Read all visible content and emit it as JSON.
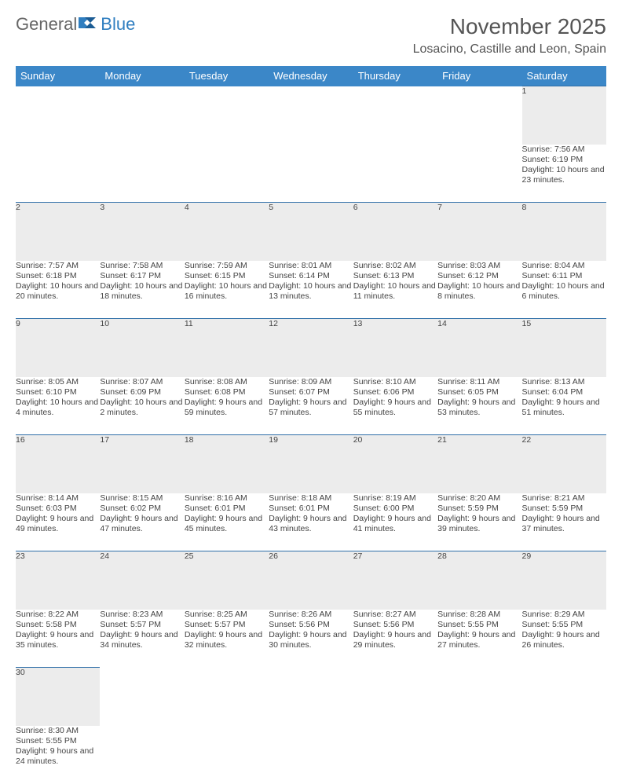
{
  "logo": {
    "part1": "General",
    "part2": "Blue"
  },
  "title": "November 2025",
  "location": "Losacino, Castille and Leon, Spain",
  "colors": {
    "header_bg": "#3b87c8",
    "header_text": "#ffffff",
    "daynum_bg": "#ececec",
    "row_border": "#2f6fa8",
    "text": "#444444",
    "logo_gray": "#666666",
    "logo_blue": "#2f7ec0"
  },
  "day_headers": [
    "Sunday",
    "Monday",
    "Tuesday",
    "Wednesday",
    "Thursday",
    "Friday",
    "Saturday"
  ],
  "weeks": [
    [
      null,
      null,
      null,
      null,
      null,
      null,
      {
        "n": "1",
        "sunrise": "Sunrise: 7:56 AM",
        "sunset": "Sunset: 6:19 PM",
        "daylight": "Daylight: 10 hours and 23 minutes."
      }
    ],
    [
      {
        "n": "2",
        "sunrise": "Sunrise: 7:57 AM",
        "sunset": "Sunset: 6:18 PM",
        "daylight": "Daylight: 10 hours and 20 minutes."
      },
      {
        "n": "3",
        "sunrise": "Sunrise: 7:58 AM",
        "sunset": "Sunset: 6:17 PM",
        "daylight": "Daylight: 10 hours and 18 minutes."
      },
      {
        "n": "4",
        "sunrise": "Sunrise: 7:59 AM",
        "sunset": "Sunset: 6:15 PM",
        "daylight": "Daylight: 10 hours and 16 minutes."
      },
      {
        "n": "5",
        "sunrise": "Sunrise: 8:01 AM",
        "sunset": "Sunset: 6:14 PM",
        "daylight": "Daylight: 10 hours and 13 minutes."
      },
      {
        "n": "6",
        "sunrise": "Sunrise: 8:02 AM",
        "sunset": "Sunset: 6:13 PM",
        "daylight": "Daylight: 10 hours and 11 minutes."
      },
      {
        "n": "7",
        "sunrise": "Sunrise: 8:03 AM",
        "sunset": "Sunset: 6:12 PM",
        "daylight": "Daylight: 10 hours and 8 minutes."
      },
      {
        "n": "8",
        "sunrise": "Sunrise: 8:04 AM",
        "sunset": "Sunset: 6:11 PM",
        "daylight": "Daylight: 10 hours and 6 minutes."
      }
    ],
    [
      {
        "n": "9",
        "sunrise": "Sunrise: 8:05 AM",
        "sunset": "Sunset: 6:10 PM",
        "daylight": "Daylight: 10 hours and 4 minutes."
      },
      {
        "n": "10",
        "sunrise": "Sunrise: 8:07 AM",
        "sunset": "Sunset: 6:09 PM",
        "daylight": "Daylight: 10 hours and 2 minutes."
      },
      {
        "n": "11",
        "sunrise": "Sunrise: 8:08 AM",
        "sunset": "Sunset: 6:08 PM",
        "daylight": "Daylight: 9 hours and 59 minutes."
      },
      {
        "n": "12",
        "sunrise": "Sunrise: 8:09 AM",
        "sunset": "Sunset: 6:07 PM",
        "daylight": "Daylight: 9 hours and 57 minutes."
      },
      {
        "n": "13",
        "sunrise": "Sunrise: 8:10 AM",
        "sunset": "Sunset: 6:06 PM",
        "daylight": "Daylight: 9 hours and 55 minutes."
      },
      {
        "n": "14",
        "sunrise": "Sunrise: 8:11 AM",
        "sunset": "Sunset: 6:05 PM",
        "daylight": "Daylight: 9 hours and 53 minutes."
      },
      {
        "n": "15",
        "sunrise": "Sunrise: 8:13 AM",
        "sunset": "Sunset: 6:04 PM",
        "daylight": "Daylight: 9 hours and 51 minutes."
      }
    ],
    [
      {
        "n": "16",
        "sunrise": "Sunrise: 8:14 AM",
        "sunset": "Sunset: 6:03 PM",
        "daylight": "Daylight: 9 hours and 49 minutes."
      },
      {
        "n": "17",
        "sunrise": "Sunrise: 8:15 AM",
        "sunset": "Sunset: 6:02 PM",
        "daylight": "Daylight: 9 hours and 47 minutes."
      },
      {
        "n": "18",
        "sunrise": "Sunrise: 8:16 AM",
        "sunset": "Sunset: 6:01 PM",
        "daylight": "Daylight: 9 hours and 45 minutes."
      },
      {
        "n": "19",
        "sunrise": "Sunrise: 8:18 AM",
        "sunset": "Sunset: 6:01 PM",
        "daylight": "Daylight: 9 hours and 43 minutes."
      },
      {
        "n": "20",
        "sunrise": "Sunrise: 8:19 AM",
        "sunset": "Sunset: 6:00 PM",
        "daylight": "Daylight: 9 hours and 41 minutes."
      },
      {
        "n": "21",
        "sunrise": "Sunrise: 8:20 AM",
        "sunset": "Sunset: 5:59 PM",
        "daylight": "Daylight: 9 hours and 39 minutes."
      },
      {
        "n": "22",
        "sunrise": "Sunrise: 8:21 AM",
        "sunset": "Sunset: 5:59 PM",
        "daylight": "Daylight: 9 hours and 37 minutes."
      }
    ],
    [
      {
        "n": "23",
        "sunrise": "Sunrise: 8:22 AM",
        "sunset": "Sunset: 5:58 PM",
        "daylight": "Daylight: 9 hours and 35 minutes."
      },
      {
        "n": "24",
        "sunrise": "Sunrise: 8:23 AM",
        "sunset": "Sunset: 5:57 PM",
        "daylight": "Daylight: 9 hours and 34 minutes."
      },
      {
        "n": "25",
        "sunrise": "Sunrise: 8:25 AM",
        "sunset": "Sunset: 5:57 PM",
        "daylight": "Daylight: 9 hours and 32 minutes."
      },
      {
        "n": "26",
        "sunrise": "Sunrise: 8:26 AM",
        "sunset": "Sunset: 5:56 PM",
        "daylight": "Daylight: 9 hours and 30 minutes."
      },
      {
        "n": "27",
        "sunrise": "Sunrise: 8:27 AM",
        "sunset": "Sunset: 5:56 PM",
        "daylight": "Daylight: 9 hours and 29 minutes."
      },
      {
        "n": "28",
        "sunrise": "Sunrise: 8:28 AM",
        "sunset": "Sunset: 5:55 PM",
        "daylight": "Daylight: 9 hours and 27 minutes."
      },
      {
        "n": "29",
        "sunrise": "Sunrise: 8:29 AM",
        "sunset": "Sunset: 5:55 PM",
        "daylight": "Daylight: 9 hours and 26 minutes."
      }
    ],
    [
      {
        "n": "30",
        "sunrise": "Sunrise: 8:30 AM",
        "sunset": "Sunset: 5:55 PM",
        "daylight": "Daylight: 9 hours and 24 minutes."
      },
      null,
      null,
      null,
      null,
      null,
      null
    ]
  ]
}
